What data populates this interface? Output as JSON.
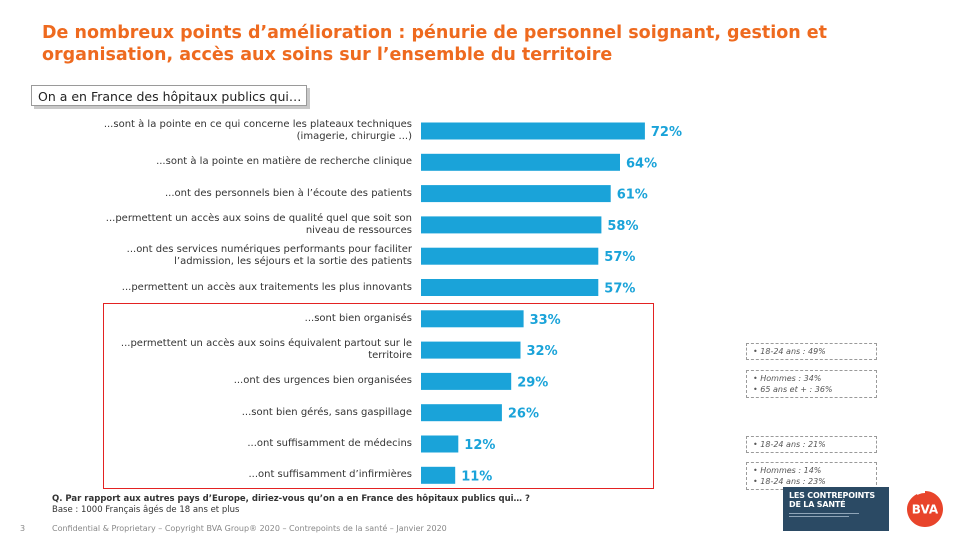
{
  "title": "De nombreux points d’amélioration : pénurie de personnel soignant, gestion et organisation, accès aux soins sur l’ensemble du territoire",
  "question_intro": "On a en France des hôpitaux publics qui…",
  "chart_data": {
    "type": "bar",
    "orientation": "horizontal",
    "categories": [
      "...sont à la pointe en ce qui concerne les plateaux techniques (imagerie, chirurgie ...)",
      "...sont à la pointe en matière de recherche clinique",
      "...ont des personnels bien à l’écoute des patients",
      "...permettent un accès aux soins de qualité quel que soit son niveau de ressources",
      "...ont des services numériques performants pour faciliter l’admission, les séjours et la sortie des patients",
      "...permettent un accès aux traitements les plus innovants",
      "...sont bien organisés",
      "...permettent un accès aux soins équivalent partout sur le territoire",
      "...ont des urgences bien organisées",
      "...sont bien gérés, sans gaspillage",
      "...ont suffisamment de médecins",
      "...ont suffisamment d’infirmières"
    ],
    "values": [
      72,
      64,
      61,
      58,
      57,
      57,
      33,
      32,
      29,
      26,
      12,
      11
    ],
    "value_labels": [
      "72%",
      "64%",
      "61%",
      "58%",
      "57%",
      "57%",
      "33%",
      "32%",
      "29%",
      "26%",
      "12%",
      "11%"
    ],
    "unit": "%",
    "xlim": [
      0,
      100
    ],
    "bar_color": "#1aa3d9",
    "label_color": "#1aa3d9",
    "highlight_color": "#e32222",
    "grid": false,
    "legend": "none"
  },
  "notes": [
    {
      "lines": [
        "• 18-24 ans : 49%"
      ]
    },
    {
      "lines": [
        "• Hommes : 34%",
        "• 65 ans et + : 36%"
      ]
    },
    {
      "lines": [
        "• 18-24 ans : 21%"
      ]
    },
    {
      "lines": [
        "• Hommes : 14%",
        "• 18-24 ans : 23%"
      ]
    }
  ],
  "footnote": {
    "question": "Q. Par rapport aux autres pays d’Europe, diriez-vous qu’on a en France des hôpitaux publics qui… ?",
    "base": "Base : 1000 Français âgés de 18 ans et plus"
  },
  "footer": {
    "page_number": "3",
    "confidential": "Confidential & Proprietary – Copyright BVA Group® 2020 – Contrepoints de la santé – Janvier 2020"
  },
  "logos": {
    "contrepoints_line1": "LES CONTREPOINTS",
    "contrepoints_line2": "DE LA SANTÉ",
    "bva": "BVA",
    "bva_color": "#e8442b"
  }
}
